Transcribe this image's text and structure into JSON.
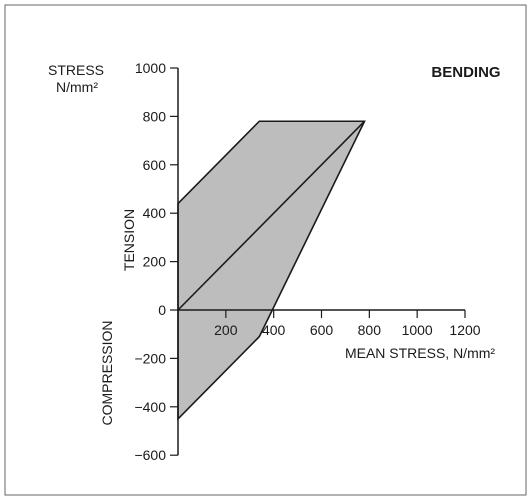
{
  "chart_data": {
    "type": "area",
    "title": "BENDING",
    "y_axis_label_lines": [
      "STRESS",
      "N/mm²"
    ],
    "x_axis_label": "MEAN STRESS, N/mm²",
    "tension_label": "TENSION",
    "compression_label": "COMPRESSION",
    "xlim": [
      0,
      1200
    ],
    "ylim": [
      -600,
      1000
    ],
    "x_ticks": [
      200,
      400,
      600,
      800,
      1000,
      1200
    ],
    "y_ticks": [
      1000,
      800,
      600,
      400,
      200,
      0,
      -200,
      -400,
      -600
    ],
    "x_tick_labels": [
      "200",
      "400",
      "600",
      "800",
      "1000",
      "1200"
    ],
    "y_tick_labels": [
      "1000",
      "800",
      "600",
      "400",
      "200",
      "0",
      "−200",
      "−400",
      "−600"
    ],
    "region_boundary": {
      "name": "",
      "x": [
        0,
        340,
        780,
        340,
        0
      ],
      "y": [
        440,
        780,
        780,
        -110,
        -450
      ]
    },
    "mean_stress_line": {
      "x": [
        0,
        780
      ],
      "y": [
        0,
        780
      ]
    },
    "fill_color": "#bdbdbd",
    "line_color": "#1b1b1b"
  }
}
